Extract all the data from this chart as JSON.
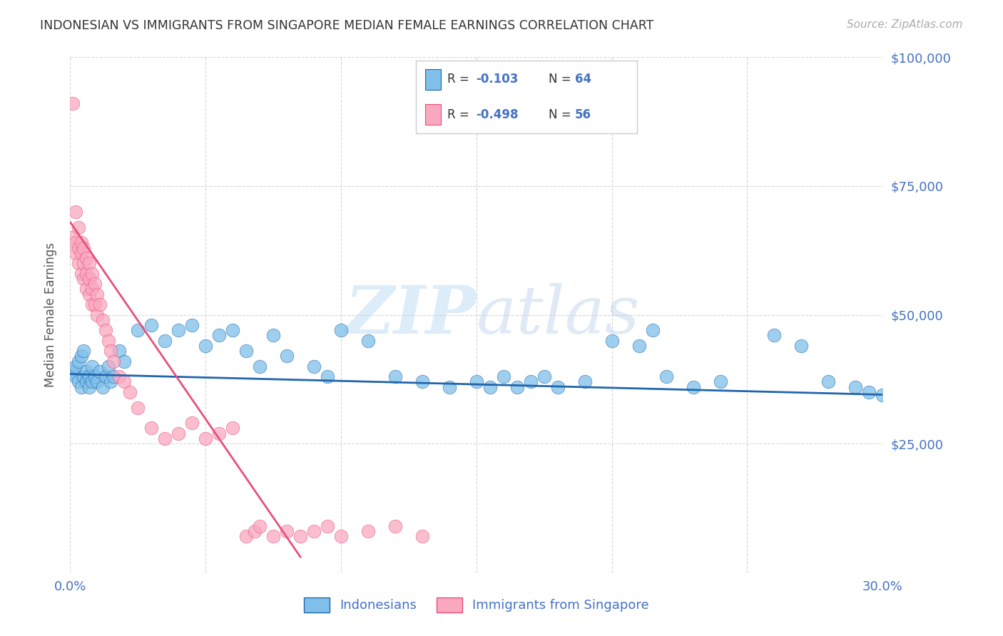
{
  "title": "INDONESIAN VS IMMIGRANTS FROM SINGAPORE MEDIAN FEMALE EARNINGS CORRELATION CHART",
  "source": "Source: ZipAtlas.com",
  "ylabel": "Median Female Earnings",
  "watermark": "ZIPatlas",
  "xlim": [
    0,
    0.3
  ],
  "ylim": [
    0,
    100000
  ],
  "yticks": [
    0,
    25000,
    50000,
    75000,
    100000
  ],
  "ytick_labels": [
    "",
    "$25,000",
    "$50,000",
    "$75,000",
    "$100,000"
  ],
  "xtick_positions": [
    0.0,
    0.05,
    0.1,
    0.15,
    0.2,
    0.25,
    0.3
  ],
  "xtick_labels": [
    "0.0%",
    "",
    "",
    "",
    "",
    "",
    "30.0%"
  ],
  "color_blue": "#7fbfea",
  "color_pink": "#f9a8c0",
  "line_color_blue": "#2166ac",
  "line_color_pink": "#e8507a",
  "background_color": "#ffffff",
  "grid_color": "#cccccc",
  "title_color": "#333333",
  "source_color": "#aaaaaa",
  "tick_color": "#4472c4",
  "indo_x": [
    0.001,
    0.002,
    0.002,
    0.003,
    0.003,
    0.004,
    0.004,
    0.005,
    0.005,
    0.006,
    0.006,
    0.007,
    0.007,
    0.008,
    0.008,
    0.009,
    0.01,
    0.011,
    0.012,
    0.013,
    0.014,
    0.015,
    0.016,
    0.018,
    0.02,
    0.025,
    0.03,
    0.035,
    0.04,
    0.045,
    0.05,
    0.055,
    0.06,
    0.065,
    0.07,
    0.075,
    0.08,
    0.09,
    0.095,
    0.1,
    0.11,
    0.12,
    0.13,
    0.14,
    0.15,
    0.155,
    0.16,
    0.165,
    0.17,
    0.175,
    0.18,
    0.19,
    0.2,
    0.21,
    0.215,
    0.22,
    0.23,
    0.24,
    0.26,
    0.27,
    0.28,
    0.29,
    0.295,
    0.3
  ],
  "indo_y": [
    39000,
    38000,
    40000,
    37000,
    41000,
    36000,
    42000,
    38000,
    43000,
    37000,
    39000,
    38000,
    36000,
    40000,
    37000,
    38000,
    37000,
    39000,
    36000,
    38000,
    40000,
    37000,
    38000,
    43000,
    41000,
    47000,
    48000,
    45000,
    47000,
    48000,
    44000,
    46000,
    47000,
    43000,
    40000,
    46000,
    42000,
    40000,
    38000,
    47000,
    45000,
    38000,
    37000,
    36000,
    37000,
    36000,
    38000,
    36000,
    37000,
    38000,
    36000,
    37000,
    45000,
    44000,
    47000,
    38000,
    36000,
    37000,
    46000,
    44000,
    37000,
    36000,
    35000,
    34500
  ],
  "sing_x": [
    0.001,
    0.001,
    0.002,
    0.002,
    0.002,
    0.003,
    0.003,
    0.003,
    0.004,
    0.004,
    0.004,
    0.005,
    0.005,
    0.005,
    0.006,
    0.006,
    0.006,
    0.007,
    0.007,
    0.007,
    0.008,
    0.008,
    0.008,
    0.009,
    0.009,
    0.01,
    0.01,
    0.011,
    0.012,
    0.013,
    0.014,
    0.015,
    0.016,
    0.018,
    0.02,
    0.022,
    0.025,
    0.03,
    0.035,
    0.04,
    0.045,
    0.05,
    0.055,
    0.06,
    0.065,
    0.068,
    0.07,
    0.075,
    0.08,
    0.085,
    0.09,
    0.095,
    0.1,
    0.11,
    0.12,
    0.13
  ],
  "sing_y": [
    91000,
    65000,
    70000,
    64000,
    62000,
    67000,
    63000,
    60000,
    64000,
    62000,
    58000,
    63000,
    60000,
    57000,
    61000,
    58000,
    55000,
    60000,
    57000,
    54000,
    58000,
    55000,
    52000,
    56000,
    52000,
    54000,
    50000,
    52000,
    49000,
    47000,
    45000,
    43000,
    41000,
    38000,
    37000,
    35000,
    32000,
    28000,
    26000,
    27000,
    29000,
    26000,
    27000,
    28000,
    7000,
    8000,
    9000,
    7000,
    8000,
    7000,
    8000,
    9000,
    7000,
    8000,
    9000,
    7000
  ],
  "indo_trend_x": [
    0.0,
    0.3
  ],
  "indo_trend_y": [
    38500,
    34500
  ],
  "sing_trend_x": [
    0.0,
    0.085
  ],
  "sing_trend_y": [
    68000,
    3000
  ]
}
